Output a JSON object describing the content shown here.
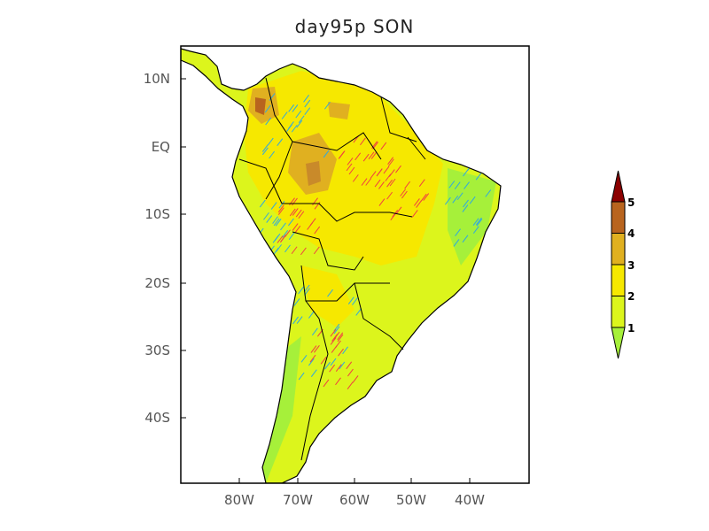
{
  "chart_data": {
    "type": "heatmap",
    "title": "day95p SON",
    "projection": "lat-lon",
    "xlim": [
      -90,
      -30
    ],
    "ylim": [
      -50,
      15
    ],
    "x_ticks": [
      "80W",
      "70W",
      "60W",
      "50W",
      "40W"
    ],
    "y_ticks": [
      "10N",
      "EQ",
      "10S",
      "20S",
      "30S",
      "40S"
    ],
    "colorbar": {
      "levels": [
        1,
        2,
        3,
        4,
        5
      ],
      "labels": [
        "1",
        "2",
        "3",
        "4",
        "5"
      ],
      "colors": [
        "#a6f03a",
        "#dcf51c",
        "#f6e800",
        "#e0b020",
        "#b8641e",
        "#8b0000"
      ],
      "extend": "both"
    },
    "hatching": {
      "colors": [
        "#2fa8e0",
        "#f04040"
      ]
    },
    "description_values": "Values mostly 1-3 over South America; 3-4 patches over Colombia/Venezuela and Amazon"
  }
}
